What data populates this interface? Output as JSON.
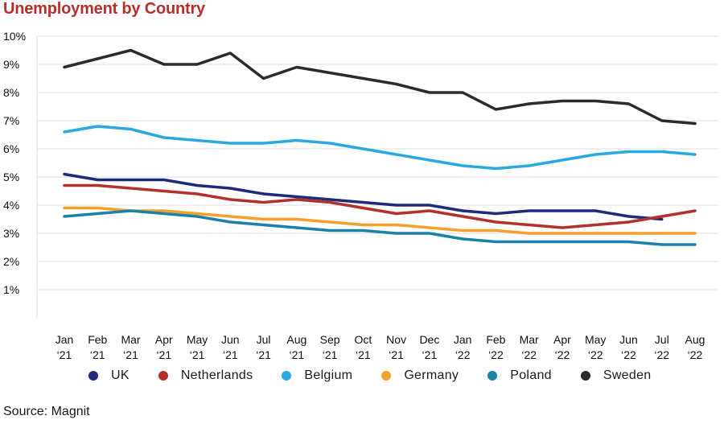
{
  "chart_data": {
    "type": "line",
    "title": "Unemployment by Country",
    "source": "Source: Magnit",
    "xlabel": "",
    "ylabel": "",
    "ylim": [
      0,
      10
    ],
    "yticks": [
      "1%",
      "2%",
      "3%",
      "4%",
      "5%",
      "6%",
      "7%",
      "8%",
      "9%",
      "10%"
    ],
    "categories": [
      [
        "Jan",
        "‘21"
      ],
      [
        "Feb",
        "‘21"
      ],
      [
        "Mar",
        "‘21"
      ],
      [
        "Apr",
        "‘21"
      ],
      [
        "May",
        "‘21"
      ],
      [
        "Jun",
        "‘21"
      ],
      [
        "Jul",
        "‘21"
      ],
      [
        "Aug",
        "‘21"
      ],
      [
        "Sep",
        "‘21"
      ],
      [
        "Oct",
        "‘21"
      ],
      [
        "Nov",
        "‘21"
      ],
      [
        "Dec",
        "‘21"
      ],
      [
        "Jan",
        "‘22"
      ],
      [
        "Feb",
        "‘22"
      ],
      [
        "Mar",
        "‘22"
      ],
      [
        "Apr",
        "‘22"
      ],
      [
        "May",
        "‘22"
      ],
      [
        "Jun",
        "‘22"
      ],
      [
        "Jul",
        "‘22"
      ],
      [
        "Aug",
        "‘22"
      ]
    ],
    "series": [
      {
        "name": "UK",
        "color": "#1f2a7a",
        "values": [
          5.1,
          4.9,
          4.9,
          4.9,
          4.7,
          4.6,
          4.4,
          4.3,
          4.2,
          4.1,
          4.0,
          4.0,
          3.8,
          3.7,
          3.8,
          3.8,
          3.8,
          3.6,
          3.5,
          null
        ]
      },
      {
        "name": "Netherlands",
        "color": "#b5302b",
        "values": [
          4.7,
          4.7,
          4.6,
          4.5,
          4.4,
          4.2,
          4.1,
          4.2,
          4.1,
          3.9,
          3.7,
          3.8,
          3.6,
          3.4,
          3.3,
          3.2,
          3.3,
          3.4,
          3.6,
          3.8
        ]
      },
      {
        "name": "Belgium",
        "color": "#29a9df",
        "values": [
          6.6,
          6.8,
          6.7,
          6.4,
          6.3,
          6.2,
          6.2,
          6.3,
          6.2,
          6.0,
          5.8,
          5.6,
          5.4,
          5.3,
          5.4,
          5.6,
          5.8,
          5.9,
          5.9,
          5.8
        ]
      },
      {
        "name": "Germany",
        "color": "#f5a02a",
        "values": [
          3.9,
          3.9,
          3.8,
          3.8,
          3.7,
          3.6,
          3.5,
          3.5,
          3.4,
          3.3,
          3.3,
          3.2,
          3.1,
          3.1,
          3.0,
          3.0,
          3.0,
          3.0,
          3.0,
          3.0
        ]
      },
      {
        "name": "Poland",
        "color": "#1a82a8",
        "values": [
          3.6,
          3.7,
          3.8,
          3.7,
          3.6,
          3.4,
          3.3,
          3.2,
          3.1,
          3.1,
          3.0,
          3.0,
          2.8,
          2.7,
          2.7,
          2.7,
          2.7,
          2.7,
          2.6,
          2.6
        ]
      },
      {
        "name": "Sweden",
        "color": "#2e2a2b",
        "values": [
          8.9,
          9.2,
          9.5,
          9.0,
          9.0,
          9.4,
          8.5,
          8.9,
          8.7,
          8.5,
          8.3,
          8.0,
          8.0,
          7.4,
          7.6,
          7.7,
          7.7,
          7.6,
          7.0,
          6.9
        ]
      }
    ]
  }
}
